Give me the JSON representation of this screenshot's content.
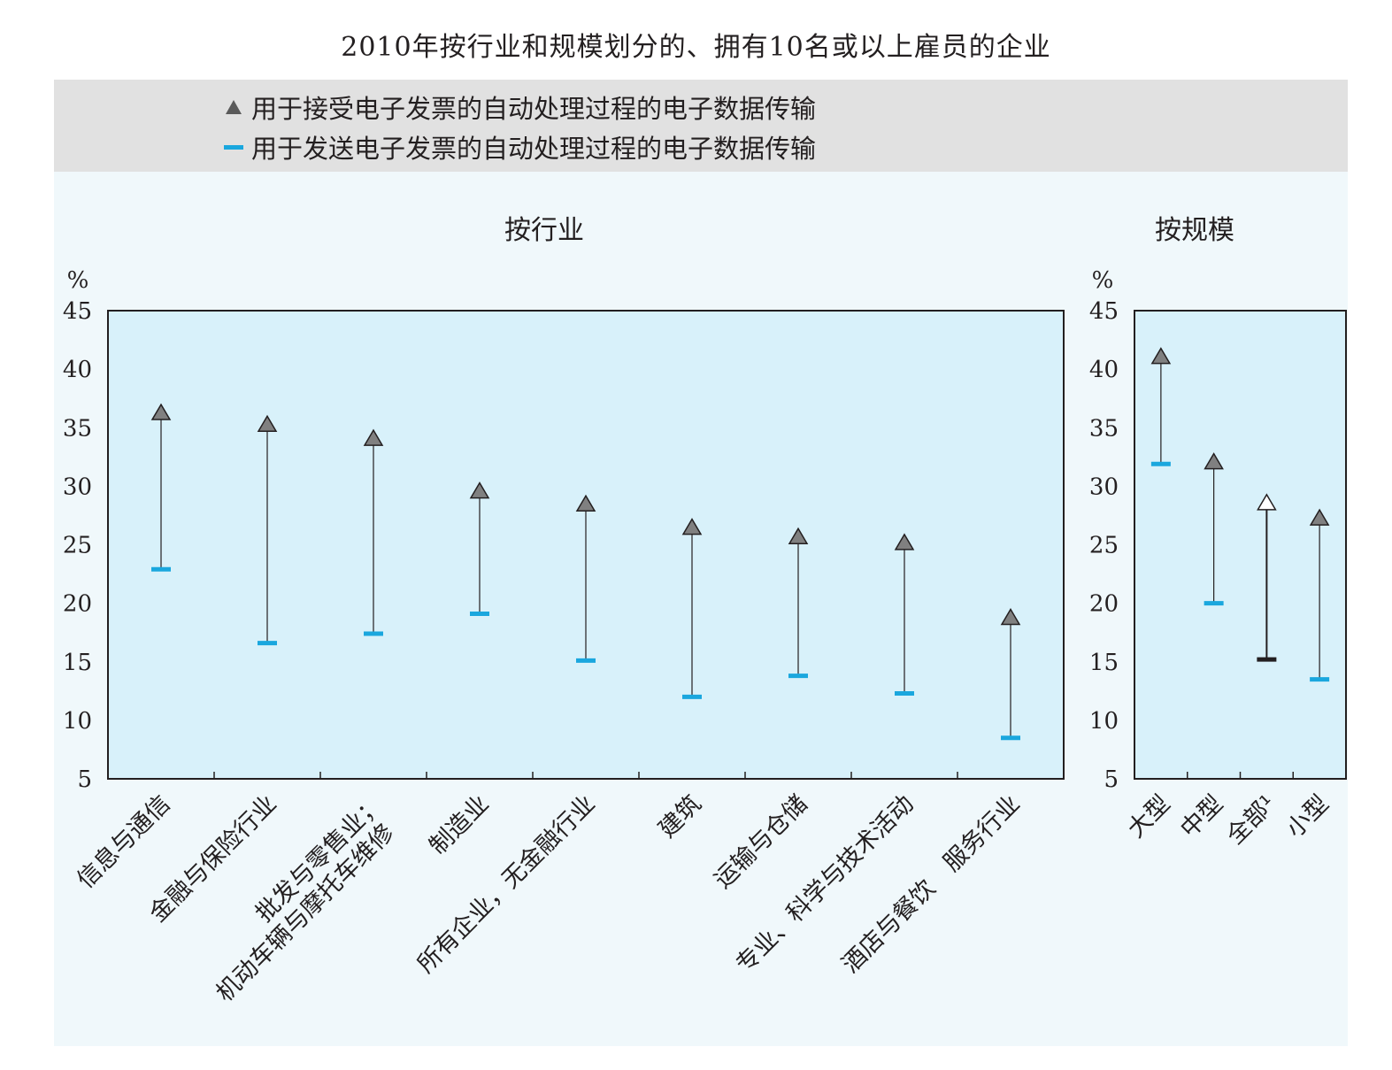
{
  "page_title": "2010年按行业和规模划分的、拥有10名或以上雇员的企业",
  "legend": {
    "receive": {
      "label": "用于接受电子发票的自动处理过程的电子数据传输",
      "icon": "triangle-icon",
      "color": "#808080"
    },
    "send": {
      "label": "用于发送电子发票的自动处理过程的电子数据传输",
      "icon": "dash-icon",
      "color": "#1aa7de"
    }
  },
  "colors": {
    "plot_bg": "#d8f1fa",
    "legend_bg": "#e1e1e1",
    "send": "#1aa7de",
    "receive": "#808080",
    "highlight": "#231f20"
  },
  "chart_data": [
    {
      "type": "scatter",
      "title": "按行业",
      "ylabel": "%",
      "ylim": [
        5,
        45
      ],
      "yticks": [
        45,
        40,
        35,
        30,
        25,
        20,
        15,
        10,
        5
      ],
      "categories": [
        [
          "信息与通信"
        ],
        [
          "金融与保险行业"
        ],
        [
          "批发与零售业；",
          "机动车辆与摩托车维修"
        ],
        [
          "制造业"
        ],
        [
          "所有企业，无金融行业"
        ],
        [
          "建筑"
        ],
        [
          "运输与仓储"
        ],
        [
          "专业、科学与技术活动"
        ],
        [
          "酒店与餐饮　服务行业"
        ]
      ],
      "series": [
        {
          "name": "用于接受电子发票的自动处理过程的电子数据传输",
          "values": [
            36.3,
            35.3,
            34.1,
            29.6,
            28.5,
            26.5,
            25.7,
            25.2,
            18.8
          ]
        },
        {
          "name": "用于发送电子发票的自动处理过程的电子数据传输",
          "values": [
            22.9,
            16.6,
            17.4,
            19.1,
            15.1,
            12.0,
            13.8,
            12.3,
            8.5
          ]
        }
      ],
      "grid": false
    },
    {
      "type": "scatter",
      "title": "按规模",
      "ylabel": "%",
      "ylim": [
        5,
        45
      ],
      "yticks": [
        45,
        40,
        35,
        30,
        25,
        20,
        15,
        10,
        5
      ],
      "categories": [
        [
          "大型"
        ],
        [
          "中型"
        ],
        [
          "全部¹"
        ],
        [
          "小型"
        ]
      ],
      "highlight_index": 2,
      "series": [
        {
          "name": "用于接受电子发票的自动处理过程的电子数据传输",
          "values": [
            41.1,
            32.1,
            28.6,
            27.3
          ]
        },
        {
          "name": "用于发送电子发票的自动处理过程的电子数据传输",
          "values": [
            31.9,
            20.0,
            15.2,
            13.5
          ]
        }
      ],
      "grid": false
    }
  ]
}
